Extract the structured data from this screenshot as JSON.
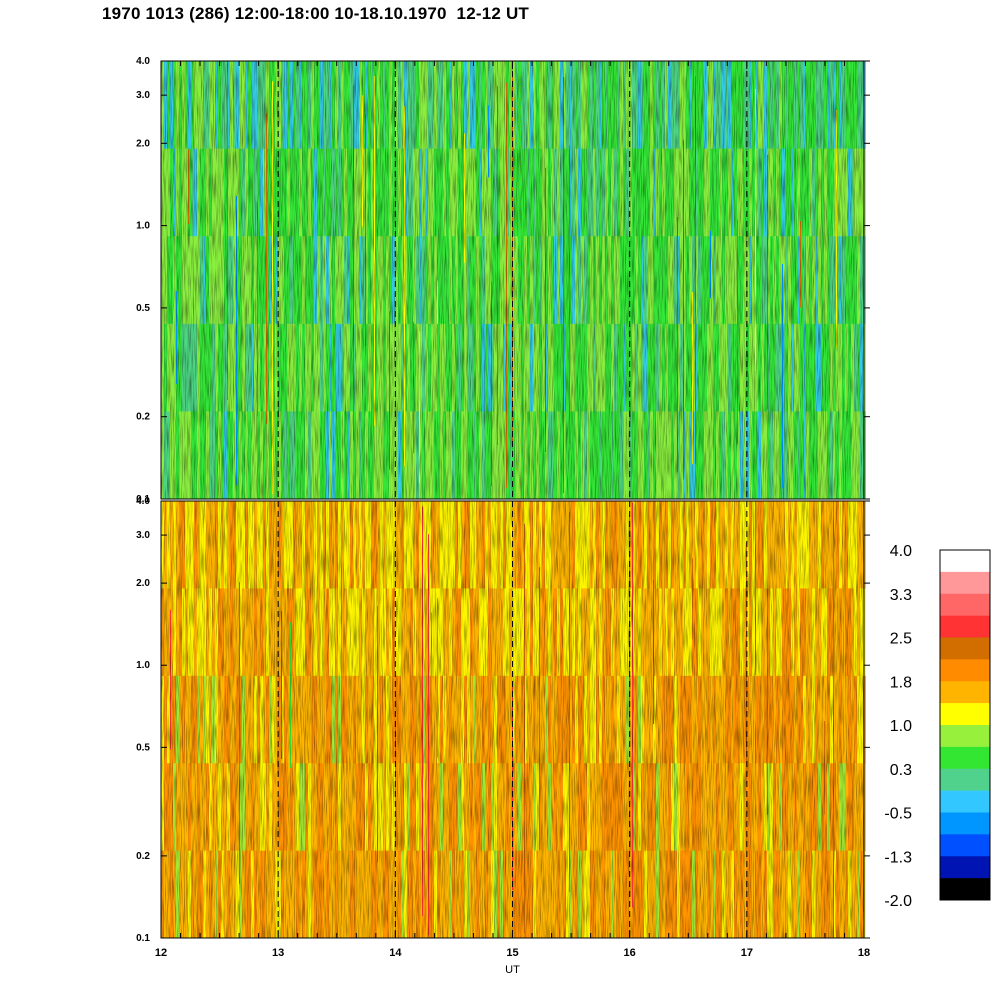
{
  "title": "1970 1013 (286) 12:00-18:00 10-18.10.1970  12-12 UT",
  "chart_data": {
    "type": "heatmap",
    "xlabel": "UT",
    "x_ticks": [
      "12",
      "13",
      "14",
      "15",
      "16",
      "17",
      "18"
    ],
    "xlim": [
      12,
      18
    ],
    "dashed_verticals_at": [
      13,
      14,
      15,
      16,
      17
    ],
    "panels": [
      {
        "name": "upper",
        "y_scale": "log",
        "ylim": [
          0.1,
          4.0
        ],
        "y_ticks": [
          "0.1",
          "0.2",
          "0.5",
          "1.0",
          "2.0",
          "3.0",
          "4.0"
        ],
        "dominant_levels": [
          "green",
          "light green",
          "teal"
        ]
      },
      {
        "name": "lower",
        "y_scale": "log",
        "ylim": [
          0.1,
          4.0
        ],
        "y_ticks": [
          "0.1",
          "0.2",
          "0.5",
          "1.0",
          "2.0",
          "3.0",
          "4.0"
        ],
        "dominant_levels": [
          "yellow",
          "orange",
          "dark orange"
        ]
      }
    ],
    "colorbar": {
      "labels": [
        "4.0",
        "3.3",
        "2.5",
        "1.8",
        "1.0",
        "0.3",
        "-0.5",
        "-1.3",
        "-2.0"
      ],
      "colors": [
        "#ffffff",
        "#ff9999",
        "#ff6666",
        "#ff3333",
        "#d26e00",
        "#ff8c00",
        "#ffb400",
        "#ffff00",
        "#96f03c",
        "#32e632",
        "#50d28c",
        "#32c8ff",
        "#0096ff",
        "#0050ff",
        "#0014b4",
        "#000000"
      ]
    }
  }
}
